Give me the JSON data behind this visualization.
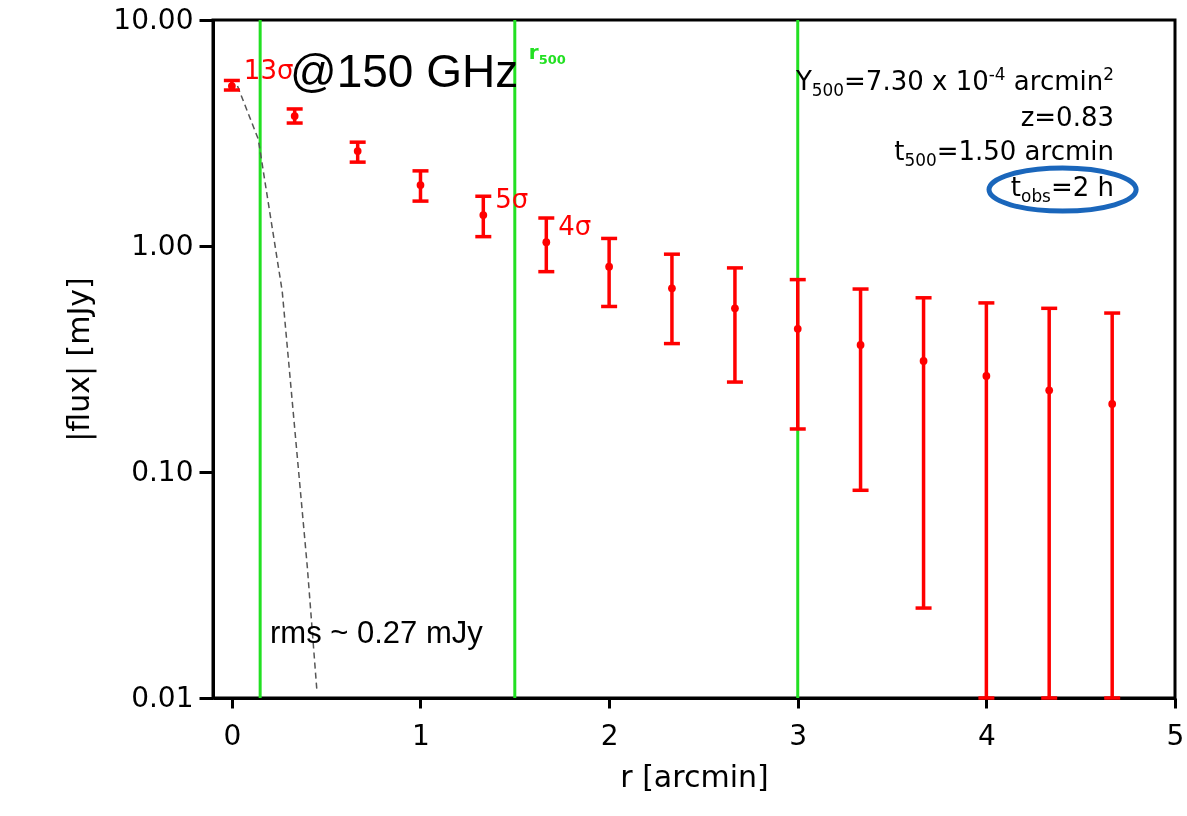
{
  "chart_data": {
    "type": "scatter",
    "xlabel": "r [arcmin]",
    "ylabel": "|flux| [mJy]",
    "xlim": [
      -0.1,
      5
    ],
    "xticks": [
      0,
      1,
      2,
      3,
      4,
      5
    ],
    "ylim": [
      0.01,
      10
    ],
    "yticks": [
      {
        "value": 0.01,
        "label": "0.01"
      },
      {
        "value": 0.1,
        "label": "0.10"
      },
      {
        "value": 1,
        "label": "1.00"
      },
      {
        "value": 10,
        "label": "10.00"
      }
    ],
    "log": "y",
    "grid": false,
    "marker": "circle",
    "series": [
      {
        "type": "line",
        "color": "#555555",
        "line_style": "dashed",
        "marker": "none",
        "x": [
          0.03,
          0.14,
          0.267,
          0.4,
          0.45
        ],
        "values": [
          5.1,
          2.97,
          0.63,
          0.038,
          0.011
        ]
      },
      {
        "color": "#ff0000",
        "x": [
          0,
          0.333,
          0.667,
          1,
          1.333,
          1.667,
          2,
          2.333,
          2.667,
          3,
          3.333,
          3.667,
          4,
          4.333,
          4.667
        ],
        "values": [
          5.1,
          3.76,
          2.63,
          1.86,
          1.37,
          1.04,
          0.81,
          0.65,
          0.53,
          0.43,
          0.365,
          0.31,
          0.266,
          0.23,
          0.2
        ],
        "errors": [
          [
            4.9,
            5.4
          ],
          [
            3.5,
            4.04
          ],
          [
            2.35,
            2.88
          ],
          [
            1.58,
            2.15
          ],
          [
            1.1,
            1.66
          ],
          [
            0.77,
            1.33
          ],
          [
            0.54,
            1.08
          ],
          [
            0.37,
            0.92
          ],
          [
            0.25,
            0.8
          ],
          [
            0.155,
            0.71
          ],
          [
            0.083,
            0.645
          ],
          [
            0.025,
            0.59
          ],
          [
            0.01,
            0.56
          ],
          [
            0.01,
            0.53
          ],
          [
            0.01,
            0.505
          ]
        ]
      }
    ],
    "ref_lines": [
      {
        "axis": "x",
        "value": 0.15,
        "color": "#22e022"
      },
      {
        "axis": "x",
        "value": 1.5,
        "label": "r$_{500}$",
        "color": "#22e022"
      },
      {
        "axis": "x",
        "value": 3.0,
        "color": "#22e022"
      }
    ],
    "annotations": [
      "@150 GHz",
      "Y$_{500}$=7.30 x 10$^{-4}$ arcmin$^{2}$",
      "z=0.83",
      "t$_{500}$=1.50 arcmin",
      "t$_{obs}$=2 h",
      "rms ~ 0.27 mJy",
      {
        "text": "13σ",
        "x": 0,
        "y": 5.1
      },
      {
        "text": "5σ",
        "x": 1.333,
        "y": 1.37
      },
      {
        "text": "4σ",
        "x": 1.667,
        "y": 1.04
      }
    ]
  }
}
